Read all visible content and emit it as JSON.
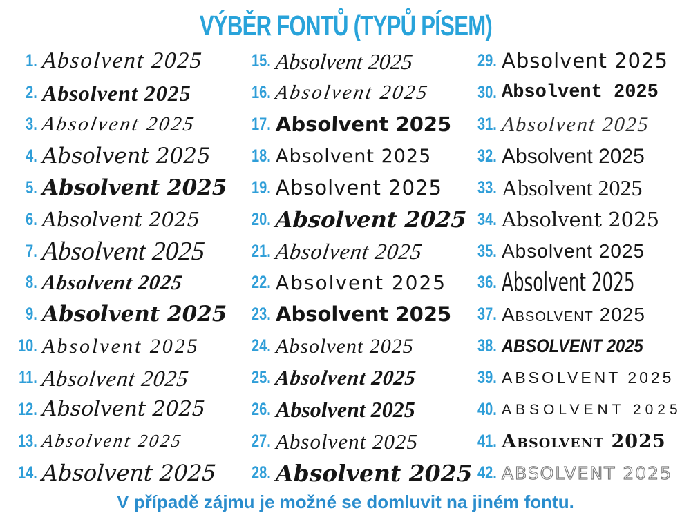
{
  "title": "VÝBĚR FONTŮ (TYPŮ PÍSEM)",
  "footer": "V případě zájmu je možné se domluvit na jiném fontu.",
  "sample_text": "Absolvent 2025",
  "colors": {
    "title_blue": "#29a3da",
    "number_blue": "#2f9ed8",
    "footer_blue": "#2a8dcd",
    "sample_black": "#161616",
    "background": "#ffffff"
  },
  "layout": {
    "columns": 3,
    "rows_per_column": 14
  },
  "fonts": [
    {
      "number": "1.",
      "text": "Absolvent 2025",
      "style": "elegant-script-light"
    },
    {
      "number": "2.",
      "text": "Absolvent 2025",
      "style": "script-bold"
    },
    {
      "number": "3.",
      "text": "Absolvent 2025",
      "style": "copperplate-thin"
    },
    {
      "number": "4.",
      "text": "Absolvent 2025",
      "style": "script-medium"
    },
    {
      "number": "5.",
      "text": "Absolvent 2025",
      "style": "script-round-bold"
    },
    {
      "number": "6.",
      "text": "Absolvent 2025",
      "style": "script-round-light"
    },
    {
      "number": "7.",
      "text": "Absolvent 2025",
      "style": "monoline-tall"
    },
    {
      "number": "8.",
      "text": "Absolvent 2025",
      "style": "brush-bold-slant"
    },
    {
      "number": "9.",
      "text": "Absolvent 2025",
      "style": "brush-bold"
    },
    {
      "number": "10.",
      "text": "Absolvent 2025",
      "style": "script-light-wide"
    },
    {
      "number": "11.",
      "text": "Absolvent 2025",
      "style": "script-thin-slant"
    },
    {
      "number": "12.",
      "text": "Absolvent 2025",
      "style": "handwritten-monoline"
    },
    {
      "number": "13.",
      "text": "Absolvent 2025",
      "style": "copperplate-small"
    },
    {
      "number": "14.",
      "text": "Absolvent 2025",
      "style": "script-flourish"
    },
    {
      "number": "15.",
      "text": "Absolvent 2025",
      "style": "script-medium-slant"
    },
    {
      "number": "16.",
      "text": "Absolvent 2025",
      "style": "copperplate-thin"
    },
    {
      "number": "17.",
      "text": "Absolvent 2025",
      "style": "marker-bold"
    },
    {
      "number": "18.",
      "text": "Absolvent 2025",
      "style": "handwriting-light"
    },
    {
      "number": "19.",
      "text": "Absolvent 2025",
      "style": "handwriting-casual"
    },
    {
      "number": "20.",
      "text": "Absolvent 2025",
      "style": "brush-heavy"
    },
    {
      "number": "21.",
      "text": "Absolvent 2025",
      "style": "script-thin-slant"
    },
    {
      "number": "22.",
      "text": "Absolvent 2025",
      "style": "handwriting-medium"
    },
    {
      "number": "23.",
      "text": "Absolvent 2025",
      "style": "comic-bold"
    },
    {
      "number": "24.",
      "text": "Absolvent 2025",
      "style": "chancery-italic"
    },
    {
      "number": "25.",
      "text": "Absolvent 2025",
      "style": "brush-bold-slant"
    },
    {
      "number": "26.",
      "text": "Absolvent 2025",
      "style": "chancery-bold"
    },
    {
      "number": "27.",
      "text": "Absolvent 2025",
      "style": "chancery-light"
    },
    {
      "number": "28.",
      "text": "Absolvent 2025",
      "style": "script-heavy"
    },
    {
      "number": "29.",
      "text": "Absolvent 2025",
      "style": "comic-round"
    },
    {
      "number": "30.",
      "text": "Absolvent 2025",
      "style": "slab-bold"
    },
    {
      "number": "31.",
      "text": "Absolvent 2025",
      "style": "monoline-loop"
    },
    {
      "number": "32.",
      "text": "Absolvent 2025",
      "style": "geometric-sans"
    },
    {
      "number": "33.",
      "text": "Absolvent 2025",
      "style": "oldstyle-serif"
    },
    {
      "number": "34.",
      "text": "Absolvent 2025",
      "style": "classic-serif"
    },
    {
      "number": "35.",
      "text": "Absolvent 2025",
      "style": "rounded-sans"
    },
    {
      "number": "36.",
      "text": "Absolvent 2025",
      "style": "tall-condensed"
    },
    {
      "number": "37.",
      "text": "Absolvent 2025",
      "style": "unicase-smallcaps"
    },
    {
      "number": "38.",
      "text": "Absolvent 2025",
      "style": "caps-bold-italic"
    },
    {
      "number": "39.",
      "text": "Absolvent 2025",
      "style": "caps-spaced-light"
    },
    {
      "number": "40.",
      "text": "Absolvent 2025",
      "style": "caps-wide"
    },
    {
      "number": "41.",
      "text": "Absolvent 2025",
      "style": "medieval-caps"
    },
    {
      "number": "42.",
      "text": "Absolvent 2025",
      "style": "dotted-outline"
    }
  ]
}
